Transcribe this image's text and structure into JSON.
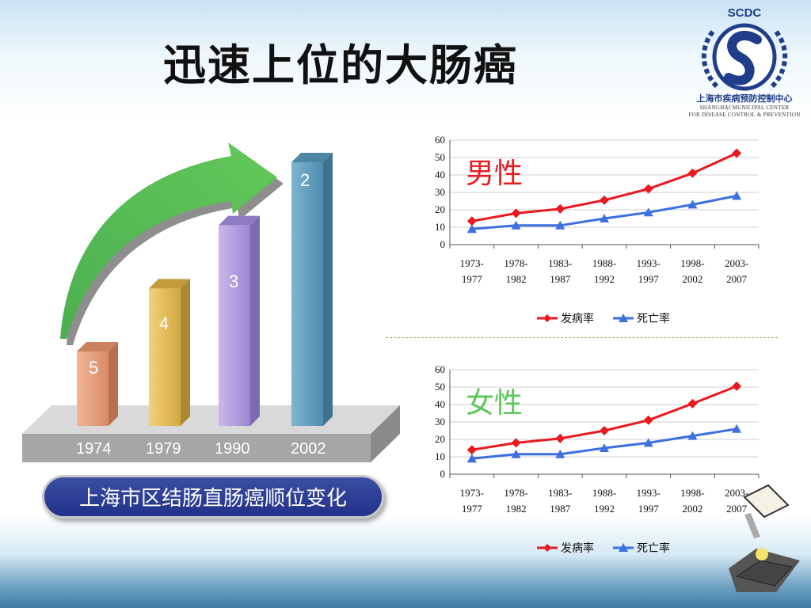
{
  "slide": {
    "title": "迅速上位的大肠癌",
    "caption": "上海市区结肠直肠癌顺位变化"
  },
  "logo": {
    "abbr": "SCDC",
    "name_cn": "上海市疾病预防控制中心",
    "name_en_line1": "SHANGHAI MUNICIPAL CENTER",
    "name_en_line2": "FOR DISEASE CONTROL & PREVENTION"
  },
  "colors": {
    "incidence": "#e8191f",
    "mortality": "#3c6fe0",
    "male_title": "#e8191f",
    "female_title": "#5cc85c"
  },
  "chart_data": [
    {
      "type": "bar",
      "categories": [
        "1974",
        "1979",
        "1990",
        "2002"
      ],
      "values": [
        5,
        4,
        3,
        2
      ],
      "value_meaning": "rank",
      "title": "上海市区结肠直肠癌顺位变化"
    },
    {
      "type": "line",
      "title": "男性",
      "x": [
        "1973-1977",
        "1978-1982",
        "1983-1987",
        "1988-1992",
        "1993-1997",
        "1998-2002",
        "2003-2007"
      ],
      "x_top": [
        "1973-",
        "1978-",
        "1983-",
        "1988-",
        "1993-",
        "1998-",
        "2003-"
      ],
      "x_bottom": [
        "1977",
        "1982",
        "1987",
        "1992",
        "1997",
        "2002",
        "2007"
      ],
      "ylim": [
        0,
        60
      ],
      "yticks": [
        "0",
        "10",
        "20",
        "30",
        "40",
        "50",
        "60"
      ],
      "legend_position": "bottom",
      "series": [
        {
          "name": "发病率",
          "values": [
            13.5,
            18,
            20.5,
            25.5,
            32,
            41,
            52.5
          ]
        },
        {
          "name": "死亡率",
          "values": [
            9,
            11,
            11,
            15,
            18.5,
            23,
            28
          ]
        }
      ]
    },
    {
      "type": "line",
      "title": "女性",
      "x": [
        "1973-1977",
        "1978-1982",
        "1983-1987",
        "1988-1992",
        "1993-1997",
        "1998-2002",
        "2003-2007"
      ],
      "x_top": [
        "1973-",
        "1978-",
        "1983-",
        "1988-",
        "1993-",
        "1998-",
        "2003-"
      ],
      "x_bottom": [
        "1977",
        "1982",
        "1987",
        "1992",
        "1997",
        "2002",
        "2007"
      ],
      "ylim": [
        0,
        60
      ],
      "yticks": [
        "0",
        "10",
        "20",
        "30",
        "40",
        "50",
        "60"
      ],
      "legend_position": "bottom",
      "series": [
        {
          "name": "发病率",
          "values": [
            14,
            18,
            20.5,
            25,
            31,
            40.5,
            50.5
          ]
        },
        {
          "name": "死亡率",
          "values": [
            9,
            11.5,
            11.5,
            15,
            18,
            22,
            26
          ]
        }
      ]
    }
  ]
}
